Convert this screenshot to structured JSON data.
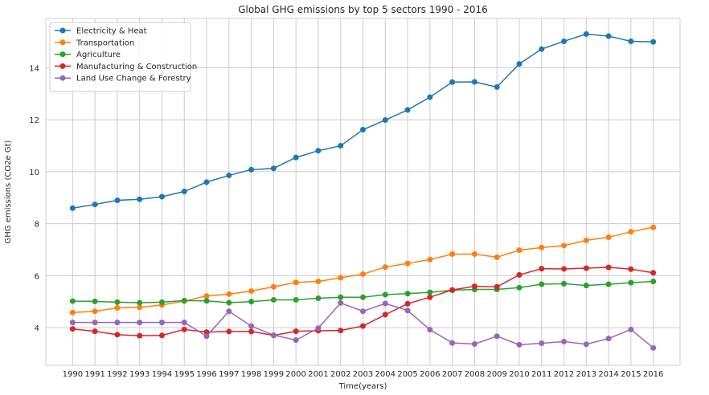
{
  "chart_data": {
    "type": "line",
    "title": "Global GHG emissions by top 5 sectors 1990 - 2016",
    "xlabel": "Time(years)",
    "ylabel": "GHG emissions (CO2e Gt)",
    "x": [
      1990,
      1991,
      1992,
      1993,
      1994,
      1995,
      1996,
      1997,
      1998,
      1999,
      2000,
      2001,
      2002,
      2003,
      2004,
      2005,
      2006,
      2007,
      2008,
      2009,
      2010,
      2011,
      2012,
      2013,
      2014,
      2015,
      2016
    ],
    "ylim": [
      2.55,
      15.9
    ],
    "yticks": [
      4,
      6,
      8,
      10,
      12,
      14
    ],
    "grid": true,
    "legend_position": "top-left",
    "series": [
      {
        "name": "Electricity & Heat",
        "color": "#1f77b4",
        "values": [
          8.6,
          8.74,
          8.9,
          8.94,
          9.04,
          9.24,
          9.6,
          9.86,
          10.08,
          10.13,
          10.55,
          10.81,
          11.0,
          11.62,
          11.99,
          12.38,
          12.87,
          13.45,
          13.46,
          13.26,
          14.15,
          14.72,
          15.02,
          15.3,
          15.22,
          15.02,
          15.0
        ]
      },
      {
        "name": "Transportation",
        "color": "#ff7f0e",
        "values": [
          4.58,
          4.63,
          4.76,
          4.78,
          4.87,
          5.02,
          5.22,
          5.29,
          5.41,
          5.57,
          5.74,
          5.78,
          5.92,
          6.06,
          6.33,
          6.47,
          6.62,
          6.83,
          6.83,
          6.71,
          6.98,
          7.08,
          7.16,
          7.36,
          7.48,
          7.69,
          7.86
        ]
      },
      {
        "name": "Agriculture",
        "color": "#2ca02c",
        "values": [
          5.02,
          5.01,
          4.98,
          4.96,
          4.98,
          5.04,
          5.03,
          4.96,
          5.0,
          5.07,
          5.07,
          5.13,
          5.17,
          5.17,
          5.27,
          5.31,
          5.36,
          5.44,
          5.47,
          5.47,
          5.54,
          5.67,
          5.69,
          5.62,
          5.67,
          5.73,
          5.78
        ]
      },
      {
        "name": "Manufacturing & Construction",
        "color": "#d62728",
        "values": [
          3.95,
          3.86,
          3.73,
          3.69,
          3.7,
          3.93,
          3.83,
          3.85,
          3.85,
          3.7,
          3.86,
          3.88,
          3.89,
          4.06,
          4.5,
          4.92,
          5.17,
          5.45,
          5.59,
          5.57,
          6.03,
          6.27,
          6.26,
          6.29,
          6.32,
          6.25,
          6.11
        ]
      },
      {
        "name": "Land Use Change & Forestry",
        "color": "#9467bd",
        "values": [
          4.2,
          4.2,
          4.2,
          4.2,
          4.2,
          4.2,
          3.67,
          4.63,
          4.06,
          3.71,
          3.52,
          3.98,
          4.95,
          4.63,
          4.93,
          4.66,
          3.92,
          3.41,
          3.37,
          3.67,
          3.34,
          3.4,
          3.46,
          3.36,
          3.58,
          3.93,
          3.22
        ]
      }
    ]
  }
}
